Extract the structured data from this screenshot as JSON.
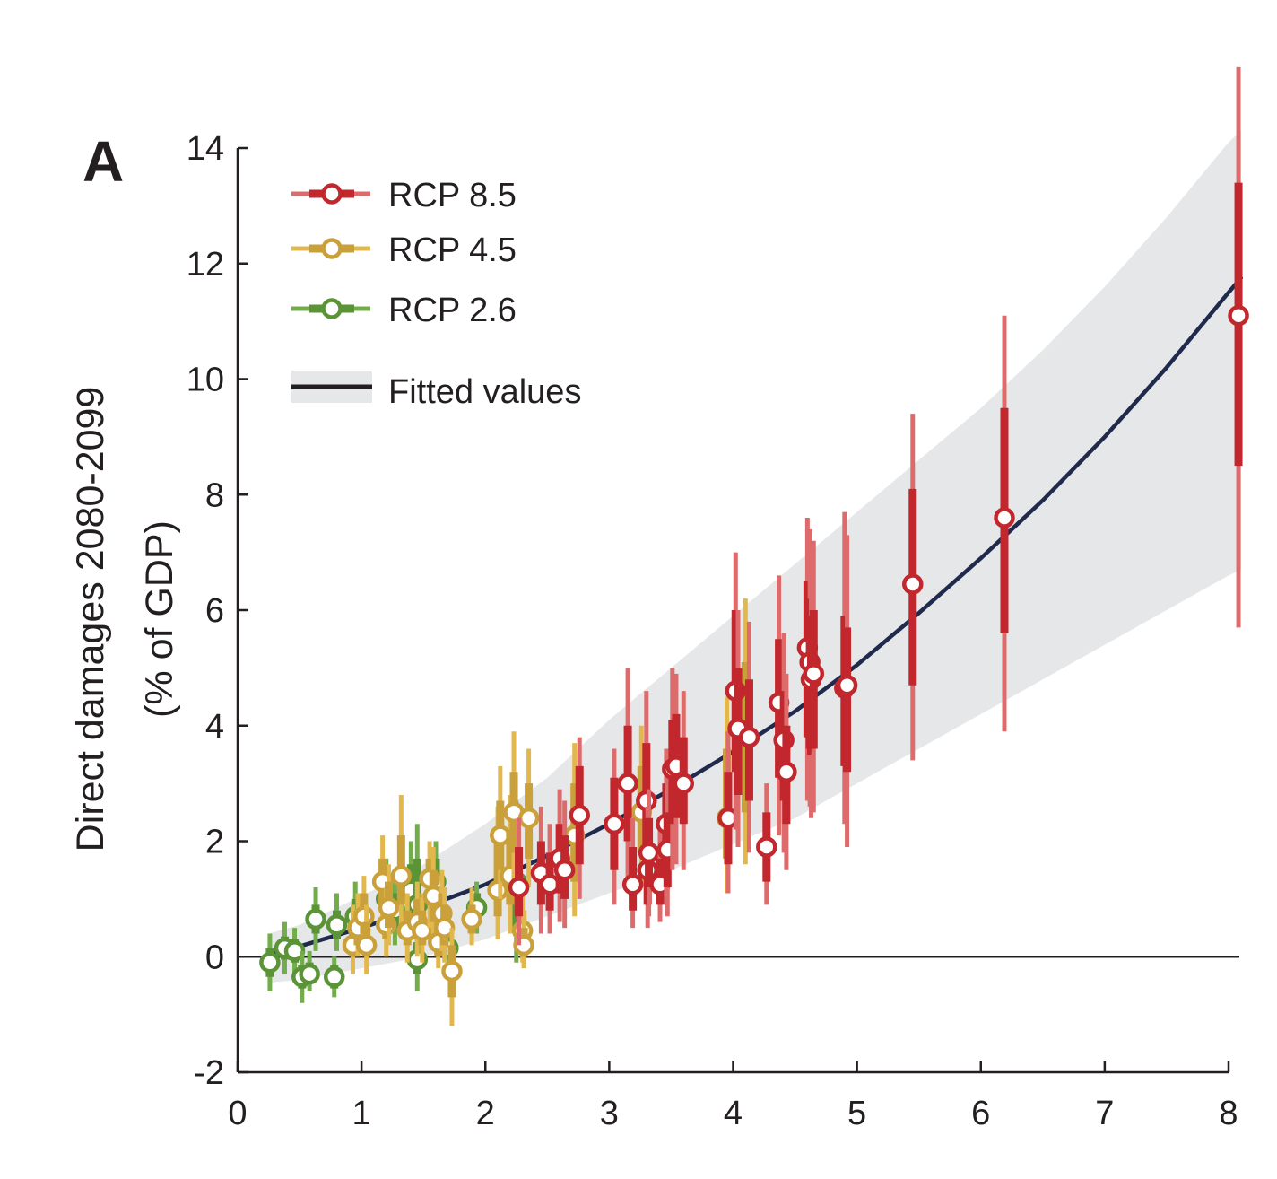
{
  "panel_label": "A",
  "chart_data": {
    "type": "scatter",
    "title": "",
    "xlabel": "",
    "ylabel": "Direct damages 2080-2099",
    "ylabel2": "(% of GDP)",
    "xlim": [
      0,
      8
    ],
    "ylim": [
      -2,
      14
    ],
    "x_ticks": [
      0,
      1,
      2,
      3,
      4,
      5,
      6,
      7,
      8
    ],
    "y_ticks": [
      -2,
      0,
      2,
      4,
      6,
      8,
      10,
      12,
      14
    ],
    "x_tick_labels": [
      "0",
      "1",
      "2",
      "3",
      "4",
      "5",
      "6",
      "7",
      "8"
    ],
    "y_tick_labels": [
      "-2",
      "0",
      "2",
      "4",
      "6",
      "8",
      "10",
      "12",
      "14"
    ],
    "legend_position": "top-left",
    "series": [
      {
        "name": "RCP 8.5",
        "color": "#c1272d",
        "whisker_color": "#dd6b6b",
        "points": [
          {
            "x": 2.27,
            "y": 1.2,
            "lo": 0.2,
            "hi": 2.4,
            "ilo": 0.7,
            "ihi": 1.9
          },
          {
            "x": 2.45,
            "y": 1.45,
            "lo": 0.4,
            "hi": 2.6,
            "ilo": 0.9,
            "ihi": 2.0
          },
          {
            "x": 2.52,
            "y": 1.25,
            "lo": 0.4,
            "hi": 2.3,
            "ilo": 0.8,
            "ihi": 1.8
          },
          {
            "x": 2.6,
            "y": 1.7,
            "lo": 0.6,
            "hi": 2.9,
            "ilo": 1.1,
            "ihi": 2.3
          },
          {
            "x": 2.64,
            "y": 1.5,
            "lo": 0.5,
            "hi": 2.7,
            "ilo": 1.0,
            "ihi": 2.1
          },
          {
            "x": 2.76,
            "y": 2.45,
            "lo": 1.0,
            "hi": 3.8,
            "ilo": 1.6,
            "ihi": 3.3
          },
          {
            "x": 3.04,
            "y": 2.3,
            "lo": 0.9,
            "hi": 3.6,
            "ilo": 1.5,
            "ihi": 3.1
          },
          {
            "x": 3.15,
            "y": 3.0,
            "lo": 1.3,
            "hi": 5.0,
            "ilo": 2.0,
            "ihi": 4.0
          },
          {
            "x": 3.19,
            "y": 1.25,
            "lo": 0.5,
            "hi": 2.4,
            "ilo": 0.8,
            "ihi": 1.9
          },
          {
            "x": 3.3,
            "y": 2.7,
            "lo": 1.1,
            "hi": 4.6,
            "ilo": 1.8,
            "ihi": 3.7
          },
          {
            "x": 3.31,
            "y": 1.5,
            "lo": 0.5,
            "hi": 2.6,
            "ilo": 0.9,
            "ihi": 2.1
          },
          {
            "x": 3.32,
            "y": 1.8,
            "lo": 0.7,
            "hi": 2.9,
            "ilo": 1.2,
            "ihi": 2.4
          },
          {
            "x": 3.41,
            "y": 1.25,
            "lo": 0.6,
            "hi": 2.3,
            "ilo": 0.9,
            "ihi": 1.7
          },
          {
            "x": 3.46,
            "y": 2.3,
            "lo": 0.9,
            "hi": 3.6,
            "ilo": 1.5,
            "ihi": 3.0
          },
          {
            "x": 3.47,
            "y": 1.85,
            "lo": 0.7,
            "hi": 3.0,
            "ilo": 1.2,
            "ihi": 2.5
          },
          {
            "x": 3.51,
            "y": 3.25,
            "lo": 1.5,
            "hi": 5.0,
            "ilo": 2.3,
            "ihi": 4.1
          },
          {
            "x": 3.54,
            "y": 3.3,
            "lo": 1.6,
            "hi": 4.9,
            "ilo": 2.4,
            "ihi": 4.2
          },
          {
            "x": 3.6,
            "y": 3.0,
            "lo": 1.5,
            "hi": 4.6,
            "ilo": 2.3,
            "ihi": 3.8
          },
          {
            "x": 3.96,
            "y": 2.4,
            "lo": 1.1,
            "hi": 3.9,
            "ilo": 1.6,
            "ihi": 3.2
          },
          {
            "x": 4.02,
            "y": 4.6,
            "lo": 2.2,
            "hi": 7.0,
            "ilo": 3.2,
            "ihi": 6.0
          },
          {
            "x": 4.04,
            "y": 3.95,
            "lo": 1.9,
            "hi": 6.0,
            "ilo": 2.8,
            "ihi": 5.0
          },
          {
            "x": 4.13,
            "y": 3.8,
            "lo": 1.8,
            "hi": 5.8,
            "ilo": 2.7,
            "ihi": 4.8
          },
          {
            "x": 4.27,
            "y": 1.9,
            "lo": 0.9,
            "hi": 3.0,
            "ilo": 1.3,
            "ihi": 2.5
          },
          {
            "x": 4.37,
            "y": 4.4,
            "lo": 2.1,
            "hi": 6.6,
            "ilo": 3.1,
            "ihi": 5.5
          },
          {
            "x": 4.41,
            "y": 3.75,
            "lo": 1.8,
            "hi": 5.6,
            "ilo": 2.7,
            "ihi": 4.6
          },
          {
            "x": 4.43,
            "y": 3.2,
            "lo": 1.5,
            "hi": 4.9,
            "ilo": 2.3,
            "ihi": 4.0
          },
          {
            "x": 4.6,
            "y": 5.35,
            "lo": 2.7,
            "hi": 7.6,
            "ilo": 3.8,
            "ihi": 6.5
          },
          {
            "x": 4.62,
            "y": 5.1,
            "lo": 2.6,
            "hi": 7.4,
            "ilo": 3.6,
            "ihi": 6.2
          },
          {
            "x": 4.63,
            "y": 4.8,
            "lo": 2.4,
            "hi": 7.1,
            "ilo": 3.5,
            "ihi": 5.9
          },
          {
            "x": 4.65,
            "y": 4.9,
            "lo": 2.5,
            "hi": 7.2,
            "ilo": 3.6,
            "ihi": 6.0
          },
          {
            "x": 4.9,
            "y": 4.65,
            "lo": 2.3,
            "hi": 7.7,
            "ilo": 3.3,
            "ihi": 5.9
          },
          {
            "x": 4.92,
            "y": 4.7,
            "lo": 1.9,
            "hi": 7.3,
            "ilo": 3.2,
            "ihi": 5.7
          },
          {
            "x": 5.45,
            "y": 6.45,
            "lo": 3.4,
            "hi": 9.4,
            "ilo": 4.7,
            "ihi": 8.1
          },
          {
            "x": 6.19,
            "y": 7.6,
            "lo": 3.9,
            "hi": 11.1,
            "ilo": 5.6,
            "ihi": 9.5
          },
          {
            "x": 8.08,
            "y": 11.1,
            "lo": 5.7,
            "hi": 15.4,
            "ilo": 8.5,
            "ihi": 13.4
          }
        ]
      },
      {
        "name": "RCP 4.5",
        "color": "#c9a03a",
        "whisker_color": "#e2b84c",
        "points": [
          {
            "x": 0.93,
            "y": 0.2,
            "lo": -0.3,
            "hi": 0.9,
            "ilo": 0.0,
            "ihi": 0.6
          },
          {
            "x": 0.97,
            "y": 0.5,
            "lo": 0.0,
            "hi": 1.1,
            "ilo": 0.2,
            "ihi": 0.8
          },
          {
            "x": 1.02,
            "y": 0.7,
            "lo": 0.1,
            "hi": 1.4,
            "ilo": 0.4,
            "ihi": 1.1
          },
          {
            "x": 1.04,
            "y": 0.2,
            "lo": -0.3,
            "hi": 0.9,
            "ilo": 0.0,
            "ihi": 0.6
          },
          {
            "x": 1.17,
            "y": 1.3,
            "lo": 0.5,
            "hi": 2.1,
            "ilo": 0.9,
            "ihi": 1.7
          },
          {
            "x": 1.2,
            "y": 0.55,
            "lo": 0.0,
            "hi": 1.2,
            "ilo": 0.3,
            "ihi": 0.9
          },
          {
            "x": 1.22,
            "y": 0.85,
            "lo": 0.2,
            "hi": 1.6,
            "ilo": 0.5,
            "ihi": 1.3
          },
          {
            "x": 1.32,
            "y": 1.4,
            "lo": 0.5,
            "hi": 2.8,
            "ilo": 0.9,
            "ihi": 2.1
          },
          {
            "x": 1.37,
            "y": 0.45,
            "lo": -0.1,
            "hi": 1.1,
            "ilo": 0.2,
            "ihi": 0.8
          },
          {
            "x": 1.45,
            "y": 0.6,
            "lo": 0.0,
            "hi": 1.3,
            "ilo": 0.3,
            "ihi": 1.0
          },
          {
            "x": 1.49,
            "y": 0.45,
            "lo": -0.1,
            "hi": 1.1,
            "ilo": 0.2,
            "ihi": 0.8
          },
          {
            "x": 1.55,
            "y": 1.35,
            "lo": 0.5,
            "hi": 2.0,
            "ilo": 0.9,
            "ihi": 1.7
          },
          {
            "x": 1.58,
            "y": 1.05,
            "lo": 0.3,
            "hi": 1.9,
            "ilo": 0.6,
            "ihi": 1.5
          },
          {
            "x": 1.62,
            "y": 0.25,
            "lo": -0.2,
            "hi": 0.9,
            "ilo": 0.0,
            "ihi": 0.6
          },
          {
            "x": 1.65,
            "y": 0.75,
            "lo": 0.1,
            "hi": 1.5,
            "ilo": 0.4,
            "ihi": 1.1
          },
          {
            "x": 1.67,
            "y": 0.5,
            "lo": -0.1,
            "hi": 1.2,
            "ilo": 0.2,
            "ihi": 0.9
          },
          {
            "x": 1.73,
            "y": -0.25,
            "lo": -1.2,
            "hi": 0.5,
            "ilo": -0.7,
            "ihi": 0.2
          },
          {
            "x": 1.89,
            "y": 0.65,
            "lo": 0.2,
            "hi": 1.2,
            "ilo": 0.4,
            "ihi": 0.9
          },
          {
            "x": 2.1,
            "y": 1.15,
            "lo": 0.3,
            "hi": 2.6,
            "ilo": 0.7,
            "ihi": 2.0
          },
          {
            "x": 2.12,
            "y": 2.1,
            "lo": 1.0,
            "hi": 3.3,
            "ilo": 1.5,
            "ihi": 2.7
          },
          {
            "x": 2.2,
            "y": 1.4,
            "lo": 0.4,
            "hi": 2.8,
            "ilo": 0.9,
            "ihi": 2.2
          },
          {
            "x": 2.23,
            "y": 2.5,
            "lo": 1.2,
            "hi": 3.9,
            "ilo": 1.8,
            "ihi": 3.2
          },
          {
            "x": 2.3,
            "y": 0.45,
            "lo": -0.1,
            "hi": 1.2,
            "ilo": 0.2,
            "ihi": 0.8
          },
          {
            "x": 2.31,
            "y": 0.2,
            "lo": -0.2,
            "hi": 0.8,
            "ilo": 0.0,
            "ihi": 0.5
          },
          {
            "x": 2.35,
            "y": 2.4,
            "lo": 1.2,
            "hi": 3.6,
            "ilo": 1.7,
            "ihi": 3.0
          },
          {
            "x": 2.72,
            "y": 2.1,
            "lo": 0.7,
            "hi": 3.7,
            "ilo": 1.3,
            "ihi": 3.0
          },
          {
            "x": 3.26,
            "y": 2.5,
            "lo": 1.2,
            "hi": 4.0,
            "ilo": 1.8,
            "ihi": 3.3
          },
          {
            "x": 3.95,
            "y": 2.4,
            "lo": 1.1,
            "hi": 4.5,
            "ilo": 1.7,
            "ihi": 3.6
          },
          {
            "x": 4.1,
            "y": 3.8,
            "lo": 1.6,
            "hi": 6.2,
            "ilo": 2.5,
            "ihi": 5.1
          }
        ]
      },
      {
        "name": "RCP 2.6",
        "color": "#5a9437",
        "whisker_color": "#73ad4b",
        "points": [
          {
            "x": 0.26,
            "y": -0.1,
            "lo": -0.6,
            "hi": 0.4,
            "ilo": -0.35,
            "ihi": 0.15
          },
          {
            "x": 0.38,
            "y": 0.15,
            "lo": -0.3,
            "hi": 0.6,
            "ilo": -0.05,
            "ihi": 0.35
          },
          {
            "x": 0.46,
            "y": 0.1,
            "lo": -0.4,
            "hi": 0.5,
            "ilo": -0.1,
            "ihi": 0.3
          },
          {
            "x": 0.52,
            "y": -0.35,
            "lo": -0.8,
            "hi": 0.1,
            "ilo": -0.55,
            "ihi": -0.15
          },
          {
            "x": 0.58,
            "y": -0.3,
            "lo": -0.6,
            "hi": 0.1,
            "ilo": -0.45,
            "ihi": -0.1
          },
          {
            "x": 0.63,
            "y": 0.65,
            "lo": 0.1,
            "hi": 1.2,
            "ilo": 0.4,
            "ihi": 0.9
          },
          {
            "x": 0.78,
            "y": -0.35,
            "lo": -0.7,
            "hi": 0.0,
            "ilo": -0.55,
            "ihi": -0.15
          },
          {
            "x": 0.8,
            "y": 0.55,
            "lo": 0.1,
            "hi": 1.1,
            "ilo": 0.3,
            "ihi": 0.8
          },
          {
            "x": 0.95,
            "y": 0.7,
            "lo": 0.2,
            "hi": 1.3,
            "ilo": 0.4,
            "ihi": 1.0
          },
          {
            "x": 1.2,
            "y": 1.0,
            "lo": 0.3,
            "hi": 1.7,
            "ilo": 0.6,
            "ihi": 1.4
          },
          {
            "x": 1.27,
            "y": 0.8,
            "lo": 0.2,
            "hi": 1.4,
            "ilo": 0.5,
            "ihi": 1.1
          },
          {
            "x": 1.4,
            "y": 1.15,
            "lo": 0.3,
            "hi": 2.0,
            "ilo": 0.7,
            "ihi": 1.6
          },
          {
            "x": 1.45,
            "y": 0.9,
            "lo": 0.2,
            "hi": 2.3,
            "ilo": 0.5,
            "ihi": 1.7
          },
          {
            "x": 1.45,
            "y": -0.05,
            "lo": -0.6,
            "hi": 0.5,
            "ilo": -0.3,
            "ihi": 0.25
          },
          {
            "x": 1.6,
            "y": 1.3,
            "lo": 0.4,
            "hi": 2.0,
            "ilo": 0.8,
            "ihi": 1.7
          },
          {
            "x": 1.7,
            "y": 0.15,
            "lo": -0.3,
            "hi": 0.6,
            "ilo": -0.05,
            "ihi": 0.4
          },
          {
            "x": 1.93,
            "y": 0.85,
            "lo": 0.4,
            "hi": 1.3,
            "ilo": 0.6,
            "ihi": 1.1
          },
          {
            "x": 2.25,
            "y": 1.3,
            "lo": -0.1,
            "hi": 2.7,
            "ilo": 0.5,
            "ihi": 2.0
          }
        ]
      }
    ],
    "fitted": {
      "name": "Fitted values",
      "color": "#1f2a4d",
      "band_color": "#e6e7e8",
      "x": [
        0.25,
        0.5,
        1.0,
        1.5,
        2.0,
        2.5,
        3.0,
        3.5,
        4.0,
        4.5,
        5.0,
        5.5,
        6.0,
        6.5,
        7.0,
        7.5,
        8.0,
        8.1
      ],
      "y": [
        0.05,
        0.18,
        0.5,
        0.85,
        1.25,
        1.75,
        2.3,
        2.9,
        3.55,
        4.25,
        5.05,
        5.95,
        6.9,
        7.9,
        9.0,
        10.2,
        11.5,
        11.75
      ],
      "lower": [
        -0.45,
        -0.4,
        -0.2,
        0.0,
        0.3,
        0.7,
        1.1,
        1.5,
        1.95,
        2.4,
        3.0,
        3.6,
        4.2,
        4.8,
        5.4,
        6.0,
        6.6,
        6.7
      ],
      "upper": [
        0.4,
        0.55,
        1.05,
        1.6,
        2.3,
        3.1,
        4.1,
        5.0,
        5.9,
        6.8,
        7.7,
        8.6,
        9.5,
        10.5,
        11.6,
        12.8,
        14.1,
        14.3
      ]
    }
  }
}
